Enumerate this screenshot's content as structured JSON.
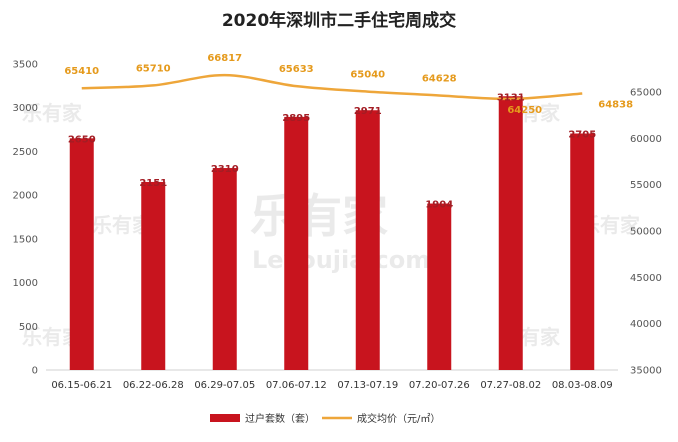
{
  "chart_data": {
    "type": "bar",
    "title": "2020年深圳市二手住宅周成交",
    "categories": [
      "06.15-06.21",
      "06.22-06.28",
      "06.29-07.05",
      "07.06-07.12",
      "07.13-07.19",
      "07.20-07.26",
      "07.27-08.02",
      "08.03-08.09"
    ],
    "series": [
      {
        "name": "过户套数（套）",
        "type": "bar",
        "axis": "left",
        "color": "#c8141e",
        "values": [
          2650,
          2151,
          2310,
          2895,
          2971,
          1904,
          3131,
          2705
        ]
      },
      {
        "name": "成交均价（元/㎡）",
        "type": "line",
        "axis": "right",
        "color": "#eea63a",
        "values": [
          65410,
          65710,
          66817,
          65633,
          65040,
          64628,
          64250,
          64838
        ]
      }
    ],
    "y_left": {
      "min": 0,
      "max": 3500,
      "ticks": [
        0,
        500,
        1000,
        1500,
        2000,
        2500,
        3000,
        3500
      ]
    },
    "y_right": {
      "min": 35000,
      "max": 65000,
      "ticks": [
        35000,
        40000,
        45000,
        50000,
        55000,
        60000,
        65000
      ]
    },
    "grid": false,
    "legend_position": "bottom-center",
    "watermark": "乐有家 Leyoujia.com"
  }
}
